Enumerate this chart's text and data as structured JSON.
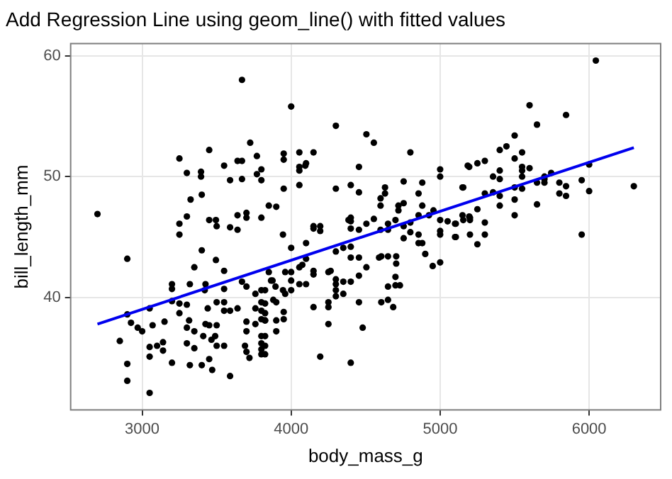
{
  "chart_data": {
    "type": "scatter",
    "title": "Add Regression Line using geom_line() with fitted values",
    "xlabel": "body_mass_g",
    "ylabel": "bill_length_mm",
    "xlim": [
      2520,
      6480
    ],
    "ylim": [
      30.7,
      61
    ],
    "xticks": [
      3000,
      4000,
      5000,
      6000
    ],
    "yticks": [
      40,
      50,
      60
    ],
    "grid": true,
    "marker": "circle",
    "series": [
      {
        "type": "scatter",
        "color": "#000000",
        "x": [
          2700,
          2900,
          2850,
          2900,
          2900,
          3050,
          2900,
          2925,
          2970,
          3000,
          3050,
          3050,
          3050,
          3070,
          3100,
          3140,
          3150,
          3140,
          3200,
          3200,
          3200,
          3200,
          3250,
          3250,
          3250,
          3250,
          3250,
          3300,
          3300,
          3300,
          3315,
          3300,
          3300,
          3320,
          3320,
          3325,
          3350,
          3350,
          3350,
          3395,
          3395,
          3400,
          3400,
          3425,
          3425,
          3410,
          3400,
          3420,
          3440,
          3450,
          3450,
          3450,
          3465,
          3470,
          3450,
          3495,
          3495,
          3500,
          3500,
          3500,
          3490,
          3500,
          3550,
          3550,
          3550,
          3550,
          3550,
          3550,
          3590,
          3590,
          3590,
          3590,
          3640,
          3640,
          3640,
          3640,
          3670,
          3670,
          3700,
          3700,
          3670,
          3670,
          3700,
          3700,
          3700,
          3690,
          3720,
          3700,
          3725,
          3770,
          3770,
          3800,
          3800,
          3800,
          3850,
          3760,
          3760,
          3760,
          3825,
          3825,
          3825,
          3825,
          3825,
          3825,
          3825,
          3865,
          4000,
          3950,
          3950,
          4055,
          4055,
          4055,
          4095,
          4100,
          4150,
          3950,
          4055,
          3900,
          3945,
          4000,
          4100,
          4150,
          4150,
          4195,
          4195,
          3850,
          3960,
          4000,
          4000,
          4055,
          4055,
          4100,
          4100,
          4075,
          3875,
          3895,
          3945,
          3960,
          4000,
          3880,
          3800,
          3800,
          3800,
          3800,
          3950,
          3950,
          3900,
          3900,
          3900,
          3825,
          3800,
          3800,
          3800,
          3800,
          4150,
          4150,
          4150,
          4250,
          4265,
          4250,
          4250,
          4250,
          4300,
          4300,
          4300,
          4300,
          4350,
          4195,
          4400,
          4480,
          4300,
          4300,
          4300,
          4350,
          4400,
          4400,
          4400,
          4400,
          4385,
          4455,
          4400,
          4455,
          4505,
          4555,
          4400,
          4455,
          4455,
          4505,
          4555,
          4350,
          4400,
          4455,
          4505,
          4455,
          4605,
          4650,
          4685,
          4650,
          4700,
          4730,
          4700,
          4705,
          4705,
          4650,
          4605,
          4590,
          4600,
          4650,
          4650,
          4700,
          4755,
          4755,
          4800,
          4800,
          4855,
          4855,
          4880,
          4900,
          4950,
          5000,
          4600,
          4600,
          4630,
          4630,
          4720,
          4720,
          4755,
          4755,
          4800,
          4855,
          4880,
          4925,
          4955,
          4855,
          4880,
          5000,
          5000,
          5000,
          5000,
          5000,
          5050,
          5100,
          5100,
          5155,
          5155,
          5185,
          5195,
          6045,
          5600,
          5845,
          5650,
          5500,
          5445,
          5400,
          5550,
          5500,
          5550,
          5600,
          5195,
          5250,
          5300,
          5355,
          5400,
          5400,
          5550,
          5550,
          5500,
          5550,
          5650,
          5700,
          5700,
          5745,
          5700,
          5800,
          5845,
          5950,
          6000,
          6000,
          5845,
          5800,
          5650,
          6300,
          5950,
          5150,
          5300,
          5355,
          5400,
          5500,
          5400,
          5300,
          5300,
          5250,
          5250,
          5200,
          5200,
          5150,
          5105,
          5105,
          5500,
          5200
        ],
        "values": [
          46.9,
          43.2,
          36.4,
          34.5,
          33.1,
          32.1,
          38.6,
          37.9,
          37.5,
          37.2,
          39.1,
          35.9,
          35.1,
          37.7,
          36,
          36.3,
          38,
          35.6,
          41.1,
          40.7,
          39.7,
          34.6,
          45.2,
          46.1,
          51.5,
          39.5,
          38.7,
          46.7,
          50.3,
          39.4,
          38.1,
          37.5,
          36.2,
          41.1,
          34.4,
          48.1,
          42.5,
          37.2,
          35.8,
          50.4,
          50,
          48.5,
          43.9,
          41.1,
          37.8,
          36.8,
          34.4,
          40.6,
          39.1,
          52.2,
          46.4,
          37.7,
          36.5,
          34,
          34.9,
          46.4,
          43.1,
          45.9,
          39.6,
          37.7,
          36.8,
          36,
          50.9,
          42.2,
          40.7,
          39.6,
          38.9,
          36,
          49.7,
          45.8,
          38.9,
          33.5,
          51.3,
          46.8,
          45.6,
          39.1,
          51.3,
          49.8,
          47,
          46.6,
          58,
          41.3,
          40.9,
          38,
          37.2,
          36,
          35,
          35.5,
          52.8,
          51.7,
          50.2,
          50.6,
          49.7,
          46.6,
          47.6,
          40.3,
          39.1,
          37.8,
          40.6,
          39.5,
          38.7,
          36.8,
          36,
          35.3,
          38.1,
          41.4,
          55.8,
          51.9,
          51.4,
          52,
          50.8,
          50.5,
          50.9,
          51.1,
          52,
          49,
          49.3,
          47.5,
          45.2,
          44.1,
          44.5,
          45.9,
          45.7,
          45.9,
          45.5,
          42.1,
          42.1,
          42.1,
          41.4,
          42.5,
          41.1,
          41.1,
          43.2,
          42.7,
          41.4,
          40.9,
          40.6,
          40.3,
          40.6,
          39.8,
          40.6,
          39.6,
          38.9,
          38.2,
          38.8,
          38.2,
          38.1,
          37.2,
          39.6,
          38.1,
          36.8,
          36.2,
          35.7,
          35.3,
          42.2,
          41.9,
          39.2,
          42.1,
          42.2,
          39.6,
          39.2,
          37.8,
          41.5,
          41.1,
          40.6,
          40.1,
          40.3,
          35.1,
          34.6,
          37.5,
          49,
          54.2,
          43.8,
          44.1,
          44.2,
          46.6,
          46.3,
          45.7,
          46.4,
          45.6,
          43.3,
          43.3,
          46.1,
          46.5,
          49.3,
          48.7,
          50.8,
          53.5,
          52.8,
          41.3,
          41.3,
          41.8,
          42.5,
          39.6,
          39.6,
          39.8,
          39.2,
          40.9,
          41,
          41,
          41.7,
          42.8,
          43.4,
          43.4,
          43.4,
          43.3,
          45.6,
          45.6,
          46.1,
          46.4,
          45.9,
          44.9,
          46.2,
          45.4,
          45.2,
          44.5,
          44.5,
          43.6,
          42.6,
          42.9,
          47.6,
          48.2,
          49.1,
          48.6,
          47.6,
          47.2,
          47.8,
          49.6,
          52,
          48.6,
          47.6,
          46.8,
          47.2,
          46.8,
          49.5,
          50.6,
          50,
          46.4,
          45.5,
          45.2,
          46.3,
          46.1,
          45,
          46.4,
          49.1,
          50.9,
          46.7,
          59.6,
          55.9,
          55.1,
          54.3,
          53.4,
          52.5,
          52.2,
          52,
          51.5,
          50.8,
          50.7,
          50.8,
          51.1,
          51.3,
          50,
          50.5,
          49.8,
          50.5,
          50,
          49.1,
          49,
          49.5,
          49.8,
          50,
          50.3,
          49.5,
          49.5,
          49.2,
          49.7,
          51,
          48.8,
          48.4,
          48.6,
          47.7,
          49.2,
          45.2,
          49.1,
          48.6,
          48.7,
          48.4,
          48.1,
          47.6,
          46.2,
          45.2,
          47.3,
          44.4,
          46.6,
          46.4,
          46.8,
          46.1,
          45,
          46.8,
          45.2
        ]
      },
      {
        "type": "line",
        "color": "#0000ee",
        "x": [
          2700,
          6300
        ],
        "values": [
          37.8,
          52.4
        ],
        "marker": "none"
      }
    ]
  }
}
